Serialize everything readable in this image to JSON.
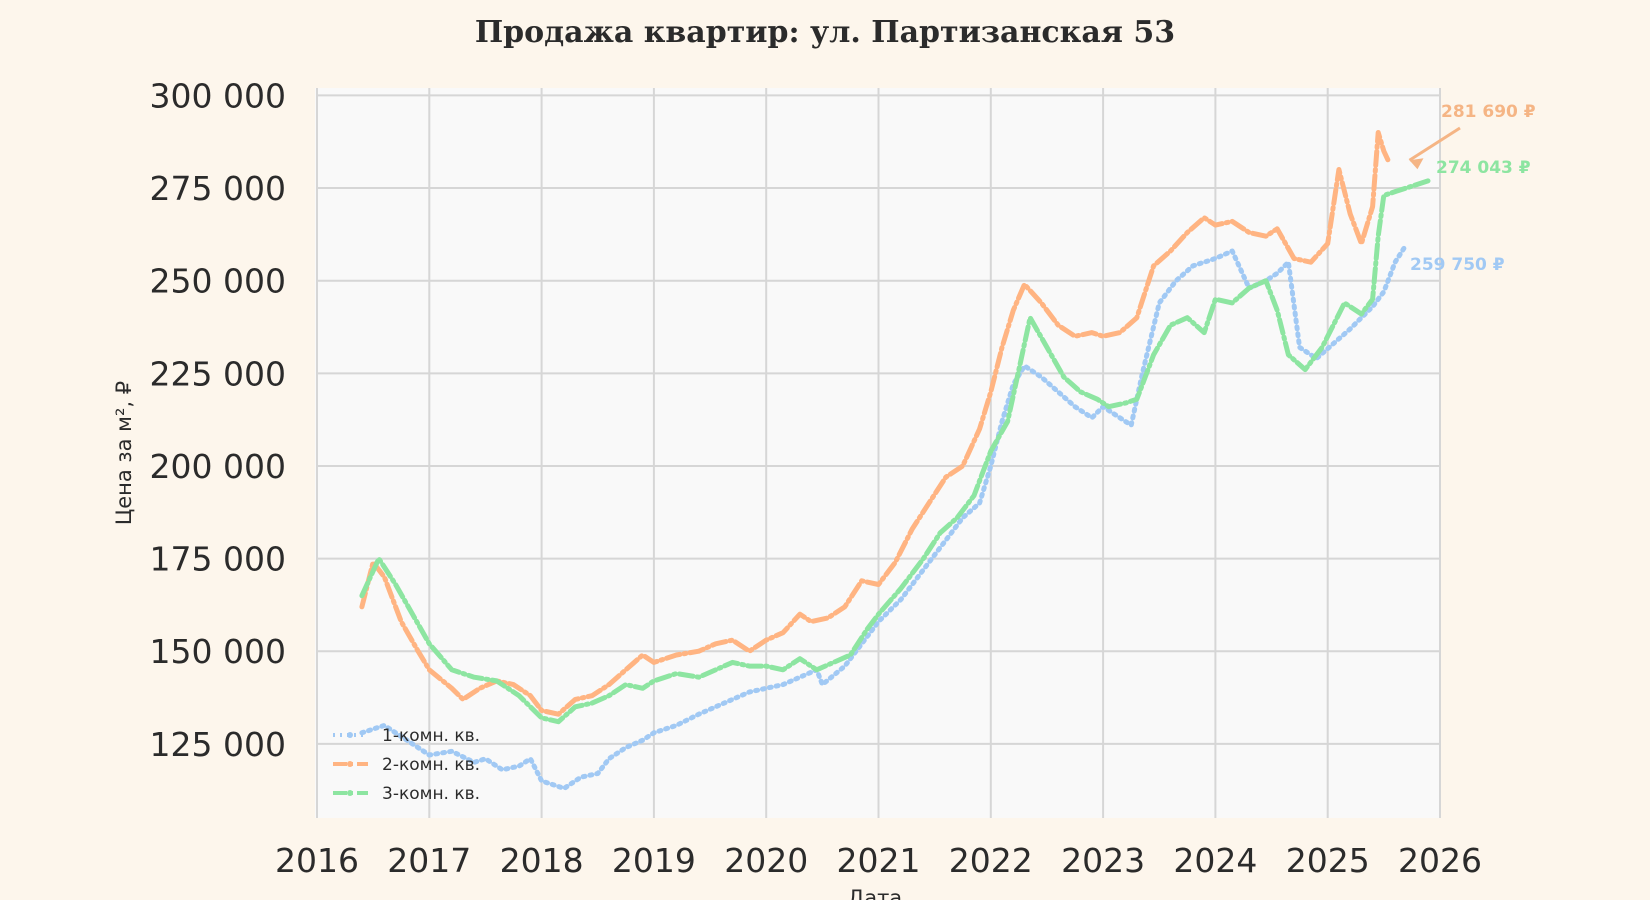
{
  "chart_data": {
    "type": "line",
    "title": "Продажа квартир: ул. Партизанская 53",
    "xlabel": "Дата",
    "ylabel": "Цена за м², ₽",
    "xlim": [
      2016,
      2026
    ],
    "ylim": [
      105000,
      302000
    ],
    "xticks": [
      "2016",
      "2017",
      "2018",
      "2019",
      "2020",
      "2021",
      "2022",
      "2023",
      "2024",
      "2025",
      "2026"
    ],
    "yticks": [
      "125 000",
      "150 000",
      "175 000",
      "200 000",
      "225 000",
      "250 000",
      "275 000",
      "300 000"
    ],
    "grid": true,
    "legend_position": "lower-left",
    "series": [
      {
        "name": "1-комн. кв.",
        "color": "#a1c9f4",
        "style": "dotted",
        "x": [
          2016.4,
          2016.5,
          2016.6,
          2016.75,
          2016.9,
          2017.0,
          2017.2,
          2017.4,
          2017.5,
          2017.65,
          2017.8,
          2017.9,
          2018.0,
          2018.1,
          2018.2,
          2018.35,
          2018.5,
          2018.6,
          2018.75,
          2018.9,
          2019.0,
          2019.2,
          2019.4,
          2019.55,
          2019.7,
          2019.85,
          2020.0,
          2020.15,
          2020.3,
          2020.45,
          2020.5,
          2020.7,
          2020.85,
          2021.0,
          2021.2,
          2021.4,
          2021.6,
          2021.75,
          2021.9,
          2022.0,
          2022.1,
          2022.2,
          2022.3,
          2022.45,
          2022.6,
          2022.75,
          2022.9,
          2023.0,
          2023.15,
          2023.25,
          2023.35,
          2023.5,
          2023.65,
          2023.8,
          2024.0,
          2024.15,
          2024.3,
          2024.45,
          2024.55,
          2024.65,
          2024.75,
          2024.9,
          2025.05,
          2025.2,
          2025.3,
          2025.4,
          2025.5,
          2025.6,
          2025.7
        ],
        "y": [
          128000,
          129000,
          130000,
          127000,
          124000,
          122000,
          123000,
          120000,
          121000,
          118000,
          119000,
          121000,
          115000,
          114000,
          113000,
          116000,
          117000,
          121000,
          124000,
          126000,
          128000,
          130000,
          133000,
          135000,
          137000,
          139000,
          140000,
          141000,
          143000,
          145000,
          141000,
          146000,
          152000,
          158000,
          164000,
          172000,
          180000,
          186000,
          190000,
          200000,
          212000,
          222000,
          227000,
          224000,
          220000,
          216000,
          213000,
          216000,
          213000,
          211000,
          225000,
          244000,
          250000,
          254000,
          256000,
          258000,
          248000,
          250000,
          252000,
          255000,
          232000,
          229000,
          233000,
          237000,
          240000,
          243000,
          247000,
          255000,
          259750
        ]
      },
      {
        "name": "2-комн. кв.",
        "color": "#ffb482",
        "style": "dashdot",
        "x": [
          2016.4,
          2016.5,
          2016.6,
          2016.75,
          2016.9,
          2017.0,
          2017.2,
          2017.3,
          2017.45,
          2017.6,
          2017.75,
          2017.9,
          2018.0,
          2018.15,
          2018.3,
          2018.45,
          2018.6,
          2018.75,
          2018.9,
          2019.0,
          2019.2,
          2019.4,
          2019.55,
          2019.7,
          2019.85,
          2020.0,
          2020.15,
          2020.3,
          2020.4,
          2020.55,
          2020.7,
          2020.85,
          2021.0,
          2021.15,
          2021.3,
          2021.45,
          2021.6,
          2021.75,
          2021.9,
          2022.0,
          2022.1,
          2022.2,
          2022.3,
          2022.45,
          2022.6,
          2022.75,
          2022.9,
          2023.0,
          2023.15,
          2023.3,
          2023.45,
          2023.6,
          2023.75,
          2023.9,
          2024.0,
          2024.15,
          2024.3,
          2024.45,
          2024.55,
          2024.7,
          2024.85,
          2025.0,
          2025.1,
          2025.2,
          2025.3,
          2025.4,
          2025.45,
          2025.5,
          2025.55
        ],
        "y": [
          162000,
          174000,
          170000,
          158000,
          150000,
          145000,
          140000,
          137000,
          140000,
          142000,
          141000,
          138000,
          134000,
          133000,
          137000,
          138000,
          141000,
          145000,
          149000,
          147000,
          149000,
          150000,
          152000,
          153000,
          150000,
          153000,
          155000,
          160000,
          158000,
          159000,
          162000,
          169000,
          168000,
          174000,
          183000,
          190000,
          197000,
          200000,
          210000,
          220000,
          232000,
          242000,
          249000,
          244000,
          238000,
          235000,
          236000,
          235000,
          236000,
          240000,
          254000,
          258000,
          263000,
          267000,
          265000,
          266000,
          263000,
          262000,
          264000,
          256000,
          255000,
          260000,
          280000,
          268000,
          260000,
          270000,
          290000,
          285000,
          281690
        ]
      },
      {
        "name": "3-комн. кв.",
        "color": "#8de5a1",
        "style": "dashdot",
        "x": [
          2016.4,
          2016.55,
          2016.7,
          2016.85,
          2017.0,
          2017.2,
          2017.4,
          2017.6,
          2017.8,
          2018.0,
          2018.15,
          2018.3,
          2018.45,
          2018.6,
          2018.75,
          2018.9,
          2019.0,
          2019.2,
          2019.4,
          2019.55,
          2019.7,
          2019.85,
          2020.0,
          2020.15,
          2020.3,
          2020.45,
          2020.6,
          2020.75,
          2020.9,
          2021.0,
          2021.2,
          2021.4,
          2021.55,
          2021.7,
          2021.85,
          2022.0,
          2022.15,
          2022.25,
          2022.35,
          2022.5,
          2022.65,
          2022.8,
          2022.95,
          2023.05,
          2023.2,
          2023.3,
          2023.45,
          2023.6,
          2023.75,
          2023.9,
          2024.0,
          2024.15,
          2024.3,
          2024.45,
          2024.55,
          2024.65,
          2024.8,
          2024.95,
          2025.05,
          2025.15,
          2025.3,
          2025.4,
          2025.45,
          2025.5,
          2025.6,
          2025.75,
          2025.9
        ],
        "y": [
          165000,
          175000,
          168000,
          160000,
          152000,
          145000,
          143000,
          142000,
          138000,
          132000,
          131000,
          135000,
          136000,
          138000,
          141000,
          140000,
          142000,
          144000,
          143000,
          145000,
          147000,
          146000,
          146000,
          145000,
          148000,
          145000,
          147000,
          149000,
          156000,
          160000,
          167000,
          175000,
          182000,
          186000,
          192000,
          204000,
          212000,
          226000,
          240000,
          232000,
          224000,
          220000,
          218000,
          216000,
          217000,
          218000,
          230000,
          238000,
          240000,
          236000,
          245000,
          244000,
          248000,
          250000,
          242000,
          230000,
          226000,
          232000,
          238000,
          244000,
          241000,
          245000,
          262000,
          273000,
          274043,
          275500,
          277000
        ]
      }
    ],
    "annotations": [
      {
        "text": "281 690 ₽",
        "series": "2-комн. кв.",
        "color": "#f5b585"
      },
      {
        "text": "274 043 ₽",
        "series": "3-комн. кв.",
        "color": "#8de5a1"
      },
      {
        "text": "259 750 ₽",
        "series": "1-комн. кв.",
        "color": "#a1c9f4"
      }
    ]
  }
}
